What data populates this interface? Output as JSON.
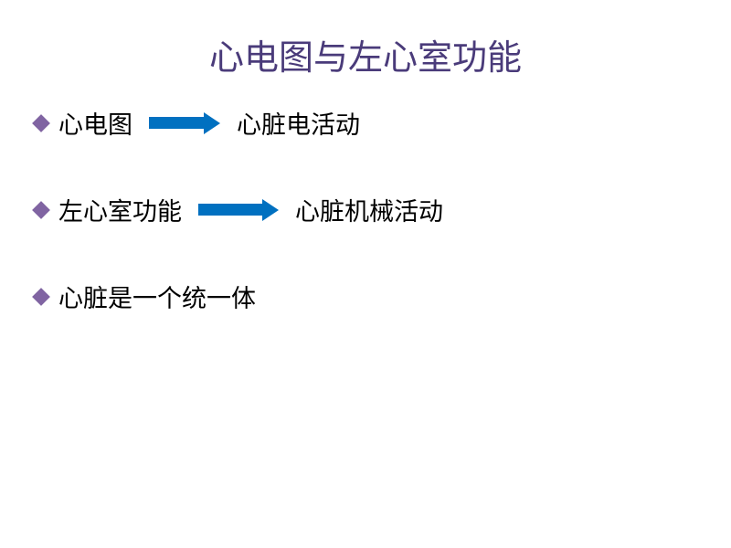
{
  "title": "心电图与左心室功能",
  "title_color": "#4a3b7a",
  "title_fontsize": 38,
  "bullet_color": "#8064a2",
  "arrow_color": "#0070c0",
  "text_color": "#000000",
  "body_fontsize": 27,
  "background_color": "#ffffff",
  "bullets": [
    {
      "before": "心电图",
      "has_arrow": true,
      "arrow_width": 60,
      "after": "心脏电活动"
    },
    {
      "before": "左心室功能",
      "has_arrow": true,
      "arrow_width": 70,
      "after": "心脏机械活动"
    },
    {
      "before": "心脏是一个统一体",
      "has_arrow": false,
      "arrow_width": 0,
      "after": ""
    }
  ]
}
